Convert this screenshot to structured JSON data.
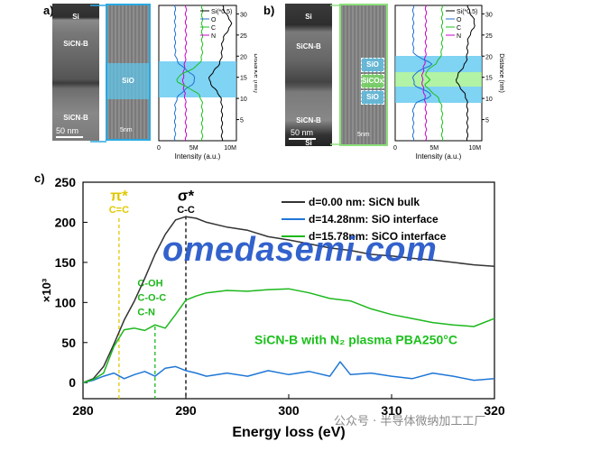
{
  "panels": {
    "a": {
      "letter": "a)",
      "layer_labels": [
        "Si",
        "SiCN-B",
        "SiO",
        "SiCN-B"
      ],
      "scale_bar": "50 nm",
      "zoom_label": "SiO",
      "zoom_scale": "5nm",
      "profile": {
        "legend": [
          "Si(*0.5)",
          "O",
          "C",
          "N"
        ],
        "xlabel": "Intensity (a.u.)",
        "ylabel": "Distance (nm)",
        "xticks": [
          "0",
          "5M",
          "10M"
        ],
        "yticks": [
          "5",
          "10",
          "15",
          "20",
          "25",
          "30"
        ]
      }
    },
    "b": {
      "letter": "b)",
      "layer_labels": [
        "Si",
        "SiCN-B",
        "SiCN-B",
        "Si"
      ],
      "scale_bar": "50 nm",
      "zoom_labels": [
        "SiO",
        "SiCOx",
        "SiO"
      ],
      "zoom_scale": "5nm",
      "profile": {
        "legend": [
          "Si(*0.5)",
          "O",
          "C",
          "N"
        ],
        "xlabel": "Intensity (a.u.)",
        "ylabel": "Distance (nm)",
        "xticks": [
          "0",
          "5M",
          "10M"
        ],
        "yticks": [
          "5",
          "10",
          "15",
          "20",
          "25",
          "30"
        ]
      }
    },
    "c": {
      "letter": "c)"
    }
  },
  "colors": {
    "si": "#000000",
    "o": "#1f6fd1",
    "c": "#1cc01c",
    "n": "#cc00cc",
    "highlight_blue": "#5fc8f0",
    "highlight_green": "#9ff08f",
    "frame_blue": "#29a8e0",
    "frame_green": "#8be07a",
    "pi_line": "#e8d020",
    "sigma_line": "#000000"
  },
  "chart_data": {
    "type": "line",
    "xlabel": "Energy loss (eV)",
    "ylabel": "×10³",
    "xlim": [
      280,
      320
    ],
    "ylim": [
      -20,
      250
    ],
    "xticks": [
      280,
      290,
      300,
      310,
      320
    ],
    "yticks": [
      0,
      50,
      100,
      150,
      200,
      250
    ],
    "series": [
      {
        "name": "d=0.00 nm: SiCN bulk",
        "color": "#333333",
        "x": [
          280,
          281,
          282,
          283,
          284,
          285,
          286,
          287,
          288,
          289,
          290,
          291,
          292,
          294,
          296,
          298,
          300,
          302,
          304,
          306,
          308,
          310,
          312,
          314,
          316,
          318,
          320
        ],
        "y": [
          0,
          5,
          20,
          48,
          78,
          102,
          130,
          160,
          185,
          203,
          207,
          205,
          200,
          194,
          190,
          182,
          178,
          173,
          168,
          165,
          160,
          158,
          155,
          153,
          150,
          147,
          145
        ]
      },
      {
        "name": "d=14.28nm: SiO interface",
        "color": "#1f77d6",
        "x": [
          280,
          281,
          282,
          283,
          284,
          285,
          286,
          287,
          288,
          289,
          290,
          291,
          292,
          294,
          296,
          298,
          300,
          302,
          304,
          305,
          306,
          308,
          310,
          312,
          314,
          316,
          318,
          320
        ],
        "y": [
          0,
          3,
          8,
          12,
          5,
          10,
          14,
          8,
          18,
          20,
          15,
          12,
          8,
          12,
          8,
          15,
          10,
          14,
          8,
          26,
          10,
          12,
          8,
          5,
          12,
          8,
          3,
          5
        ]
      },
      {
        "name": "d=15.78nm: SiCO interface",
        "color": "#1cb81c",
        "x": [
          280,
          281,
          282,
          283,
          284,
          285,
          286,
          287,
          288,
          289,
          290,
          291,
          292,
          294,
          296,
          298,
          300,
          302,
          304,
          306,
          308,
          310,
          312,
          314,
          316,
          318,
          320
        ],
        "y": [
          0,
          4,
          12,
          45,
          66,
          68,
          65,
          72,
          68,
          85,
          103,
          108,
          112,
          115,
          114,
          116,
          117,
          112,
          105,
          102,
          92,
          85,
          80,
          75,
          72,
          70,
          80
        ]
      }
    ],
    "annotations": [
      {
        "symbol": "π*",
        "sub": "C=C",
        "x": 283.5,
        "color": "#e0c800"
      },
      {
        "symbol": "σ*",
        "sub": "C-C",
        "x": 290,
        "color": "#000000"
      },
      {
        "lines": [
          "C-OH",
          "C-O-C",
          "C-N"
        ],
        "x": 287,
        "color": "#1cb81c"
      }
    ],
    "caption": "SiCN-B with N₂ plasma PBA250°C",
    "legend_position": "top-right"
  },
  "overlay": {
    "brand": "omedasemi.com",
    "watermark": "公众号 · 半导体微纳加工工厂"
  }
}
